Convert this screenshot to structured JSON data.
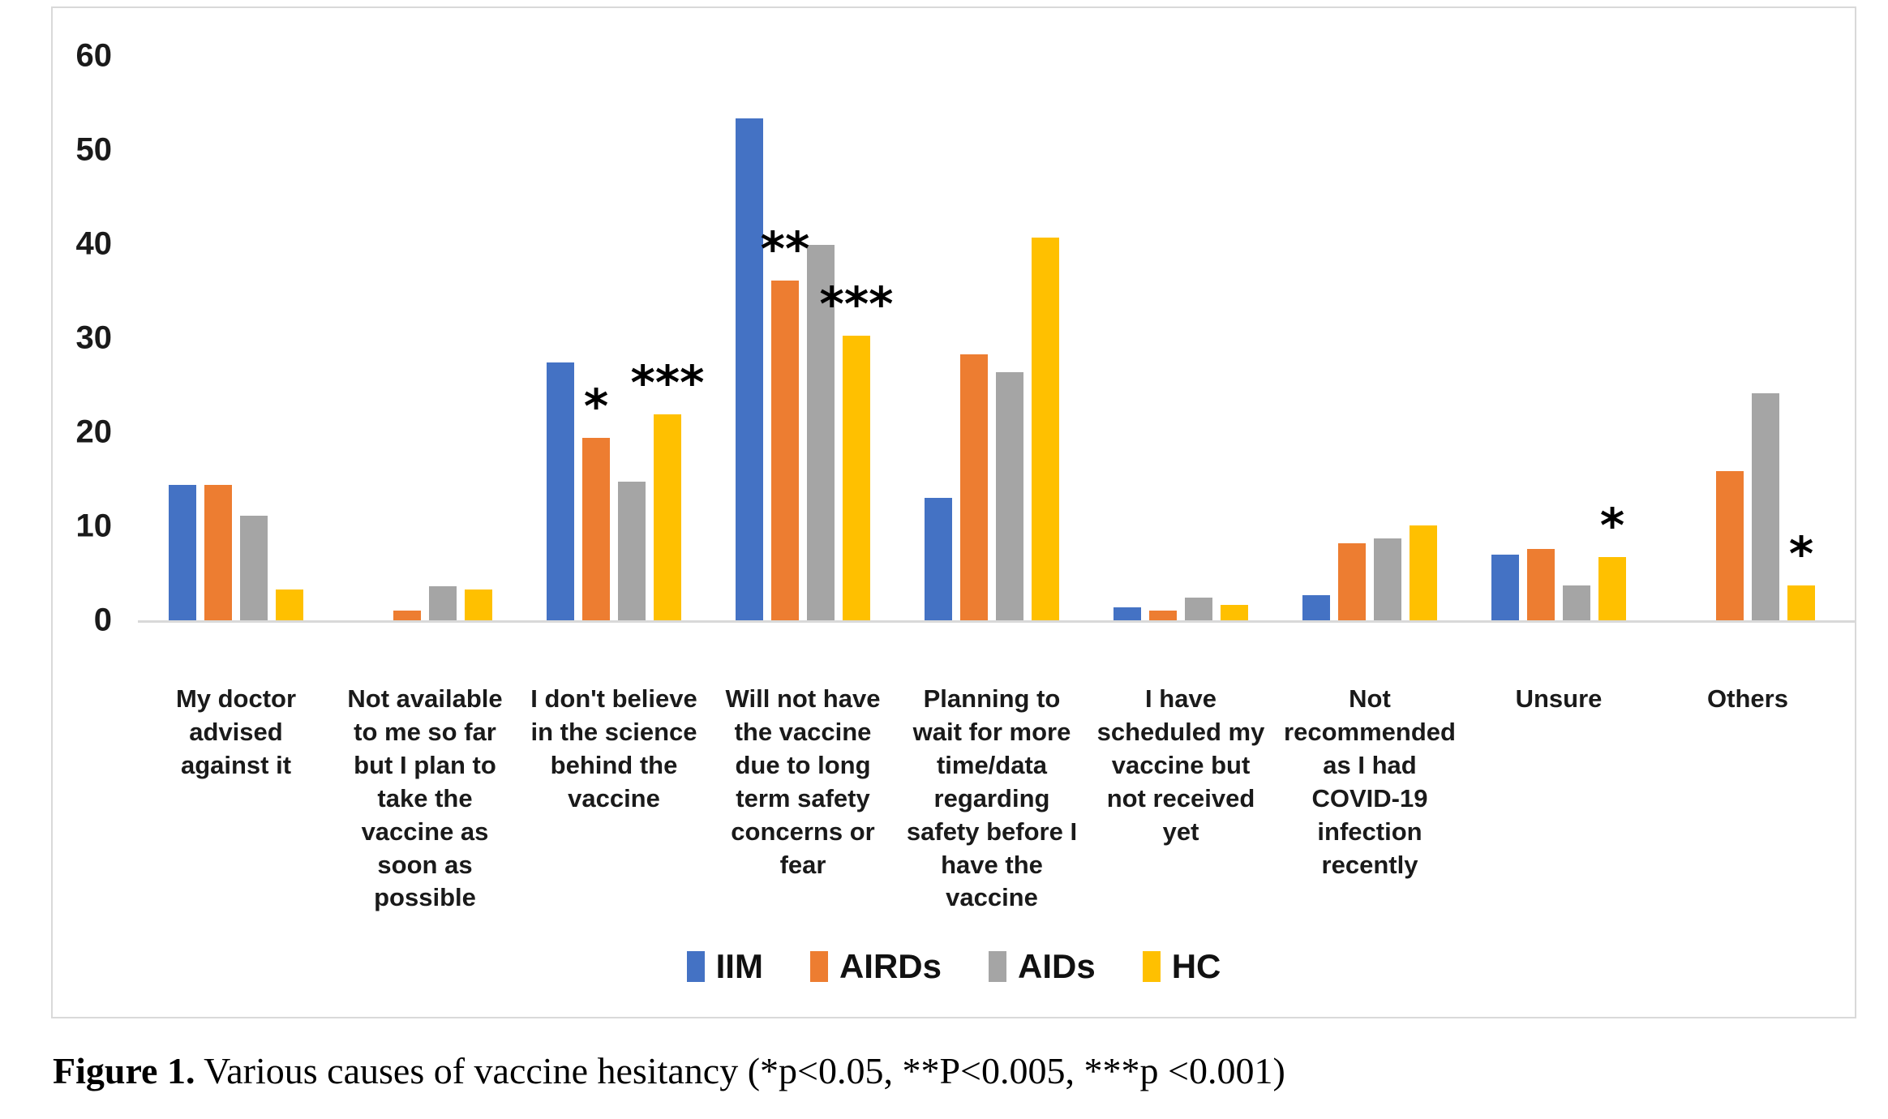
{
  "chart_data": {
    "type": "bar",
    "title": "",
    "xlabel": "",
    "ylabel": "",
    "ylim": [
      0,
      60
    ],
    "yticks": [
      0,
      10,
      20,
      30,
      40,
      50,
      60
    ],
    "grid": false,
    "legend_position": "bottom-center",
    "categories": [
      "My doctor advised against it",
      "Not available to me so far but I plan to take the vaccine as soon as possible",
      "I don't believe in the science behind the vaccine",
      "Will not have the vaccine due to long term safety concerns or fear",
      "Planning to wait for more time/data regarding safety before I have the vaccine",
      "I have scheduled my vaccine but not received yet",
      "Not recommended as I had COVID-19 infection recently",
      "Unsure",
      "Others"
    ],
    "series": [
      {
        "name": "IIM",
        "color": "#4472C4",
        "values": [
          14.4,
          0,
          27.4,
          53.4,
          13.0,
          1.4,
          2.7,
          7.0,
          0
        ]
      },
      {
        "name": "AIRDs",
        "color": "#ED7D31",
        "values": [
          14.4,
          1.0,
          19.4,
          36.1,
          28.3,
          1.0,
          8.2,
          7.6,
          15.9
        ]
      },
      {
        "name": "AIDs",
        "color": "#A5A5A5",
        "values": [
          11.1,
          3.6,
          14.7,
          39.9,
          26.4,
          2.4,
          8.7,
          3.7,
          24.1
        ]
      },
      {
        "name": "HC",
        "color": "#FFC000",
        "values": [
          3.3,
          3.3,
          21.9,
          30.3,
          40.7,
          1.6,
          10.1,
          6.7,
          3.7
        ]
      }
    ],
    "annotations": [
      {
        "category_index": 2,
        "series_index": 1,
        "symbol": "*"
      },
      {
        "category_index": 2,
        "series_index": 3,
        "symbol": "***"
      },
      {
        "category_index": 3,
        "series_index": 1,
        "symbol": "**"
      },
      {
        "category_index": 3,
        "series_index": 3,
        "symbol": "***"
      },
      {
        "category_index": 7,
        "series_index": 3,
        "symbol": "*"
      },
      {
        "category_index": 8,
        "series_index": 3,
        "symbol": "*"
      }
    ]
  },
  "caption": {
    "prefix": "Figure 1.",
    "text": " Various causes of vaccine hesitancy (*p<0.05, **P<0.005, ***p <0.001)"
  }
}
